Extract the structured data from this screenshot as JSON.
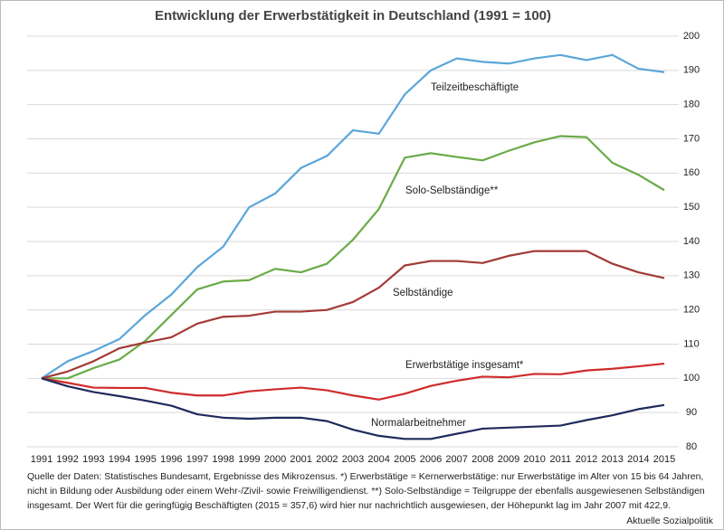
{
  "chart_data": {
    "type": "line",
    "title": "Entwicklung der Erwerbstätigkeit in Deutschland (1991 = 100)",
    "categories": [
      "1991",
      "1992",
      "1993",
      "1994",
      "1995",
      "1996",
      "1997",
      "1998",
      "1999",
      "2000",
      "2001",
      "2002",
      "2003",
      "2004",
      "2005",
      "2006",
      "2007",
      "2008",
      "2009",
      "2010",
      "2011",
      "2012",
      "2013",
      "2014",
      "2015"
    ],
    "ylim": [
      80,
      200
    ],
    "yticks": [
      80,
      90,
      100,
      110,
      120,
      130,
      140,
      150,
      160,
      170,
      180,
      190,
      200
    ],
    "grid": true,
    "series": [
      {
        "name": "Teilzeitbeschäftigte",
        "color": "#5ba6da",
        "values": [
          100,
          105,
          108,
          111.5,
          118.5,
          124.5,
          132.5,
          138.5,
          150,
          154,
          161.5,
          165,
          172.5,
          171.5,
          183,
          190,
          193.5,
          192.5,
          192,
          193.5,
          194.5,
          193,
          194.5,
          190.5,
          189.5
        ]
      },
      {
        "name": "Solo-Selbständige**",
        "color": "#6aab47",
        "values": [
          100,
          100,
          103,
          105.5,
          111,
          118.5,
          126,
          128.3,
          128.7,
          132,
          131,
          133.5,
          140.5,
          149.5,
          164.5,
          165.8,
          164.7,
          163.7,
          166.5,
          169,
          170.8,
          170.5,
          163,
          159.5,
          155
        ]
      },
      {
        "name": "Selbständige",
        "color": "#a33a35",
        "values": [
          100,
          102,
          105,
          108.8,
          110.5,
          112,
          116,
          118,
          118.3,
          119.5,
          119.5,
          120,
          122.3,
          126.5,
          133,
          134.3,
          134.3,
          133.7,
          135.8,
          137.2,
          137.2,
          137.2,
          133.5,
          131,
          129.3
        ]
      },
      {
        "name": "Erwerbstätige insgesamt*",
        "color": "#d02b2b",
        "values": [
          100,
          98.7,
          97.3,
          97.2,
          97.2,
          95.8,
          95,
          95,
          96.2,
          96.8,
          97.3,
          96.5,
          95,
          93.8,
          95.5,
          97.8,
          99.3,
          100.5,
          100.3,
          101.3,
          101.2,
          102.3,
          102.8,
          103.5,
          104.3
        ]
      },
      {
        "name": "Normalarbeitnehmer",
        "color": "#1f2a5c",
        "values": [
          100,
          97.7,
          96,
          94.8,
          93.5,
          92,
          89.5,
          88.5,
          88.2,
          88.5,
          88.5,
          87.5,
          85,
          83.2,
          82.3,
          82.3,
          83.8,
          85.3,
          85.6,
          85.9,
          86.2,
          87.8,
          89.2,
          91,
          92.2
        ]
      }
    ],
    "footnote": [
      "Quelle der Daten: Statistisches Bundesamt, Ergebnisse des Mikrozensus. *) Erwerbstätige = Kernerwerbstätige: nur Erwerbstätige im Alter von 15 bis 64 Jahren,",
      "nicht in Bildung oder Ausbildung oder einem Wehr-/Zivil- sowie Freiwilligendienst. **) Solo-Selbständige = Teilgruppe der ebenfalls ausgewiesenen Selbständigen",
      "insgesamt. Der Wert für die geringfügig Beschäftigten (2015 = 357,6) wird hier nur nachrichtlich ausgewiesen, der Höhepunkt lag im Jahr 2007 mit 422,9."
    ],
    "source": "Aktuelle Sozialpolitik"
  }
}
